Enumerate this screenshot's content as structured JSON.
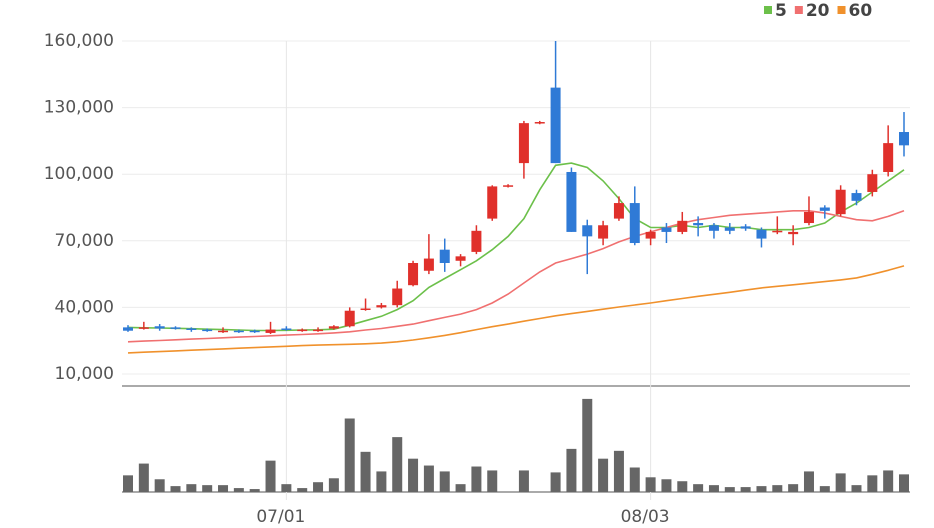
{
  "chart_data": {
    "type": "candlestick",
    "categories": [
      null,
      null,
      null,
      null,
      null,
      null,
      null,
      null,
      null,
      null,
      "07/01",
      null,
      null,
      null,
      null,
      null,
      null,
      null,
      null,
      null,
      null,
      null,
      null,
      null,
      null,
      null,
      null,
      null,
      null,
      null,
      null,
      null,
      null,
      "08/03",
      null,
      null,
      null,
      null,
      null,
      null,
      null,
      null,
      null,
      null,
      null,
      null,
      null,
      null,
      null,
      null
    ],
    "open": [
      31000,
      30500,
      31500,
      31000,
      30500,
      30000,
      29000,
      29500,
      29500,
      28500,
      30500,
      29500,
      29500,
      30500,
      31500,
      39000,
      40000,
      41000,
      50000,
      56500,
      66000,
      61000,
      65000,
      80000,
      94500,
      105000,
      123000,
      139000,
      101000,
      77000,
      71000,
      80000,
      87000,
      71000,
      76000,
      74000,
      78000,
      77000,
      76000,
      76500,
      75000,
      74000,
      73000,
      78000,
      85000,
      82000,
      91500,
      92000,
      101000,
      119000
    ],
    "high": [
      32000,
      33500,
      32500,
      31500,
      31000,
      30500,
      31000,
      30000,
      30000,
      33500,
      31500,
      30500,
      31000,
      32000,
      40000,
      44000,
      42000,
      52000,
      61000,
      73000,
      71000,
      64000,
      77000,
      95000,
      95500,
      124000,
      124000,
      160000,
      103000,
      79500,
      79000,
      90000,
      94500,
      75000,
      78000,
      83000,
      81000,
      78000,
      78000,
      77500,
      76000,
      81000,
      77000,
      90000,
      86000,
      95000,
      93000,
      102000,
      122000,
      128000
    ],
    "low": [
      29000,
      30000,
      29500,
      30000,
      29000,
      29000,
      28500,
      28500,
      28500,
      28000,
      29500,
      29000,
      29000,
      30000,
      31000,
      38500,
      39500,
      40000,
      49500,
      55000,
      56000,
      58500,
      64000,
      79000,
      94000,
      98000,
      122500,
      105000,
      74000,
      55000,
      68000,
      79000,
      68000,
      68000,
      69000,
      73000,
      72000,
      71000,
      73000,
      74500,
      67000,
      73000,
      68000,
      77000,
      80000,
      81000,
      86000,
      90000,
      99000,
      108000
    ],
    "close": [
      29500,
      31000,
      30500,
      30500,
      30000,
      29500,
      29500,
      29000,
      29000,
      30000,
      30000,
      30000,
      30000,
      31500,
      38500,
      39500,
      41000,
      48500,
      60000,
      62000,
      60000,
      63000,
      74500,
      94500,
      95000,
      123000,
      123500,
      105000,
      74000,
      72000,
      77000,
      87000,
      69000,
      74000,
      74000,
      79000,
      77000,
      74500,
      74500,
      75500,
      71000,
      74500,
      74000,
      83000,
      83500,
      93000,
      88000,
      100000,
      114000,
      113000
    ],
    "up_color": "#e0302b",
    "down_color": "#2f7ad6",
    "series": [
      {
        "name": "5",
        "color": "#6cc04a",
        "values": [
          31000,
          30800,
          30700,
          30600,
          30400,
          30200,
          30000,
          29800,
          29600,
          29600,
          29700,
          29800,
          29900,
          30200,
          32000,
          34000,
          36000,
          39000,
          43000,
          49000,
          53000,
          57000,
          61000,
          66000,
          72000,
          80000,
          93000,
          104000,
          105000,
          103000,
          97000,
          89000,
          80000,
          76000,
          76000,
          77000,
          76000,
          77000,
          76000,
          76000,
          75000,
          75000,
          75000,
          76000,
          78000,
          83000,
          87000,
          92000,
          97000,
          102000
        ]
      },
      {
        "name": "20",
        "color": "#f07070",
        "values": [
          24500,
          24800,
          25100,
          25400,
          25700,
          26000,
          26300,
          26600,
          26900,
          27200,
          27500,
          27800,
          28100,
          28500,
          29000,
          29800,
          30500,
          31500,
          32500,
          34000,
          35500,
          37000,
          39000,
          42000,
          46000,
          51000,
          56000,
          60000,
          62000,
          64000,
          66500,
          69500,
          72000,
          74000,
          76000,
          78000,
          79500,
          80500,
          81500,
          82000,
          82500,
          83000,
          83500,
          83500,
          82500,
          81000,
          79500,
          79000,
          81000,
          83500
        ]
      },
      {
        "name": "60",
        "color": "#f0912c",
        "values": [
          19500,
          19800,
          20100,
          20400,
          20700,
          21000,
          21300,
          21600,
          21900,
          22200,
          22500,
          22800,
          23000,
          23200,
          23400,
          23600,
          23900,
          24500,
          25300,
          26300,
          27400,
          28600,
          30000,
          31300,
          32500,
          33800,
          35000,
          36200,
          37200,
          38200,
          39200,
          40200,
          41100,
          42000,
          43000,
          44000,
          45000,
          45900,
          46800,
          47800,
          48800,
          49500,
          50200,
          50900,
          51600,
          52400,
          53300,
          54900,
          56700,
          58700
        ]
      }
    ],
    "volume": [
      17,
      29,
      13,
      6,
      8,
      7,
      7,
      4,
      3,
      32,
      8,
      4,
      10,
      14,
      75,
      41,
      21,
      56,
      34,
      27,
      21,
      8,
      26,
      22,
      0,
      22,
      0,
      20,
      44,
      95,
      34,
      42,
      25,
      15,
      13,
      11,
      8,
      7,
      5,
      5,
      6,
      7,
      8,
      21,
      6,
      19,
      7,
      17,
      22,
      18
    ],
    "volume_color": "#666666",
    "volume_ylim": [
      0,
      100
    ],
    "ylim": [
      10000,
      160000
    ],
    "yticks": [
      {
        "value": 10000,
        "label": "10,000"
      },
      {
        "value": 40000,
        "label": "40,000"
      },
      {
        "value": 70000,
        "label": "70,000"
      },
      {
        "value": 100000,
        "label": "100,000"
      },
      {
        "value": 130000,
        "label": "130,000"
      },
      {
        "value": 160000,
        "label": "160,000"
      }
    ],
    "grid": true,
    "legend": "top-right"
  }
}
